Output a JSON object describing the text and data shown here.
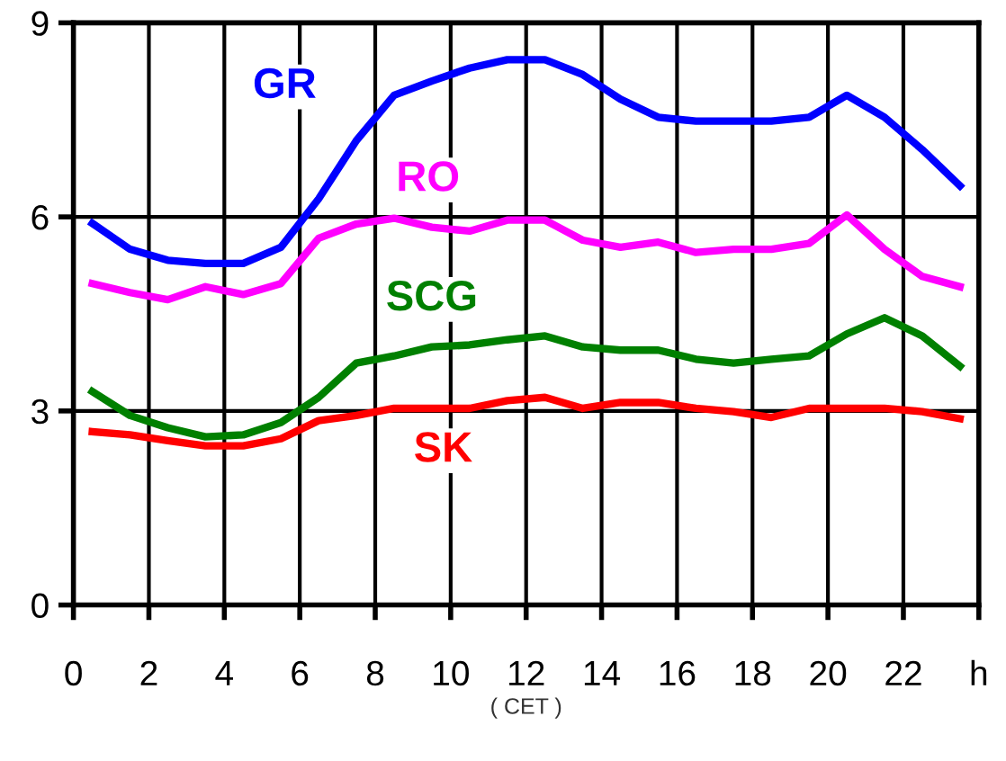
{
  "chart_data": {
    "type": "line",
    "xlabel": "( CET )",
    "x": [
      0.5,
      1.5,
      2.5,
      3.5,
      4.5,
      5.5,
      6.5,
      7.5,
      8.5,
      9.5,
      10.5,
      11.5,
      12.5,
      13.5,
      14.5,
      15.5,
      16.5,
      17.5,
      18.5,
      19.5,
      20.5,
      21.5,
      22.5,
      23.5
    ],
    "series": [
      {
        "name": "GR",
        "color": "#0000ff",
        "values": [
          5.9,
          5.5,
          5.33,
          5.28,
          5.28,
          5.53,
          6.28,
          7.18,
          7.88,
          8.1,
          8.3,
          8.43,
          8.43,
          8.2,
          7.82,
          7.54,
          7.48,
          7.48,
          7.48,
          7.54,
          7.88,
          7.54,
          7.04,
          6.48
        ]
      },
      {
        "name": "RO",
        "color": "#ff00ff",
        "values": [
          4.97,
          4.83,
          4.72,
          4.92,
          4.8,
          4.97,
          5.67,
          5.89,
          5.98,
          5.84,
          5.78,
          5.95,
          5.95,
          5.64,
          5.53,
          5.61,
          5.45,
          5.5,
          5.5,
          5.59,
          6.03,
          5.5,
          5.08,
          4.92
        ]
      },
      {
        "name": "SCG",
        "color": "#008000",
        "values": [
          3.3,
          2.93,
          2.74,
          2.6,
          2.63,
          2.82,
          3.21,
          3.74,
          3.85,
          3.99,
          4.02,
          4.1,
          4.16,
          3.99,
          3.94,
          3.94,
          3.8,
          3.74,
          3.8,
          3.85,
          4.19,
          4.44,
          4.16,
          3.69
        ]
      },
      {
        "name": "SK",
        "color": "#ff0000",
        "values": [
          2.68,
          2.63,
          2.54,
          2.46,
          2.46,
          2.57,
          2.85,
          2.93,
          3.04,
          3.04,
          3.04,
          3.16,
          3.21,
          3.04,
          3.13,
          3.13,
          3.04,
          2.99,
          2.9,
          3.04,
          3.04,
          3.04,
          2.99,
          2.88
        ]
      }
    ],
    "xlim": [
      0,
      24
    ],
    "xticks": [
      0,
      2,
      4,
      6,
      8,
      10,
      12,
      14,
      16,
      18,
      20,
      22,
      {
        "value": 24,
        "label": "h"
      }
    ],
    "ylim": [
      0,
      9
    ],
    "yticks": [
      0,
      3,
      6,
      9
    ],
    "grid": true,
    "legend": false,
    "marker": "none",
    "line_style": "solid"
  }
}
